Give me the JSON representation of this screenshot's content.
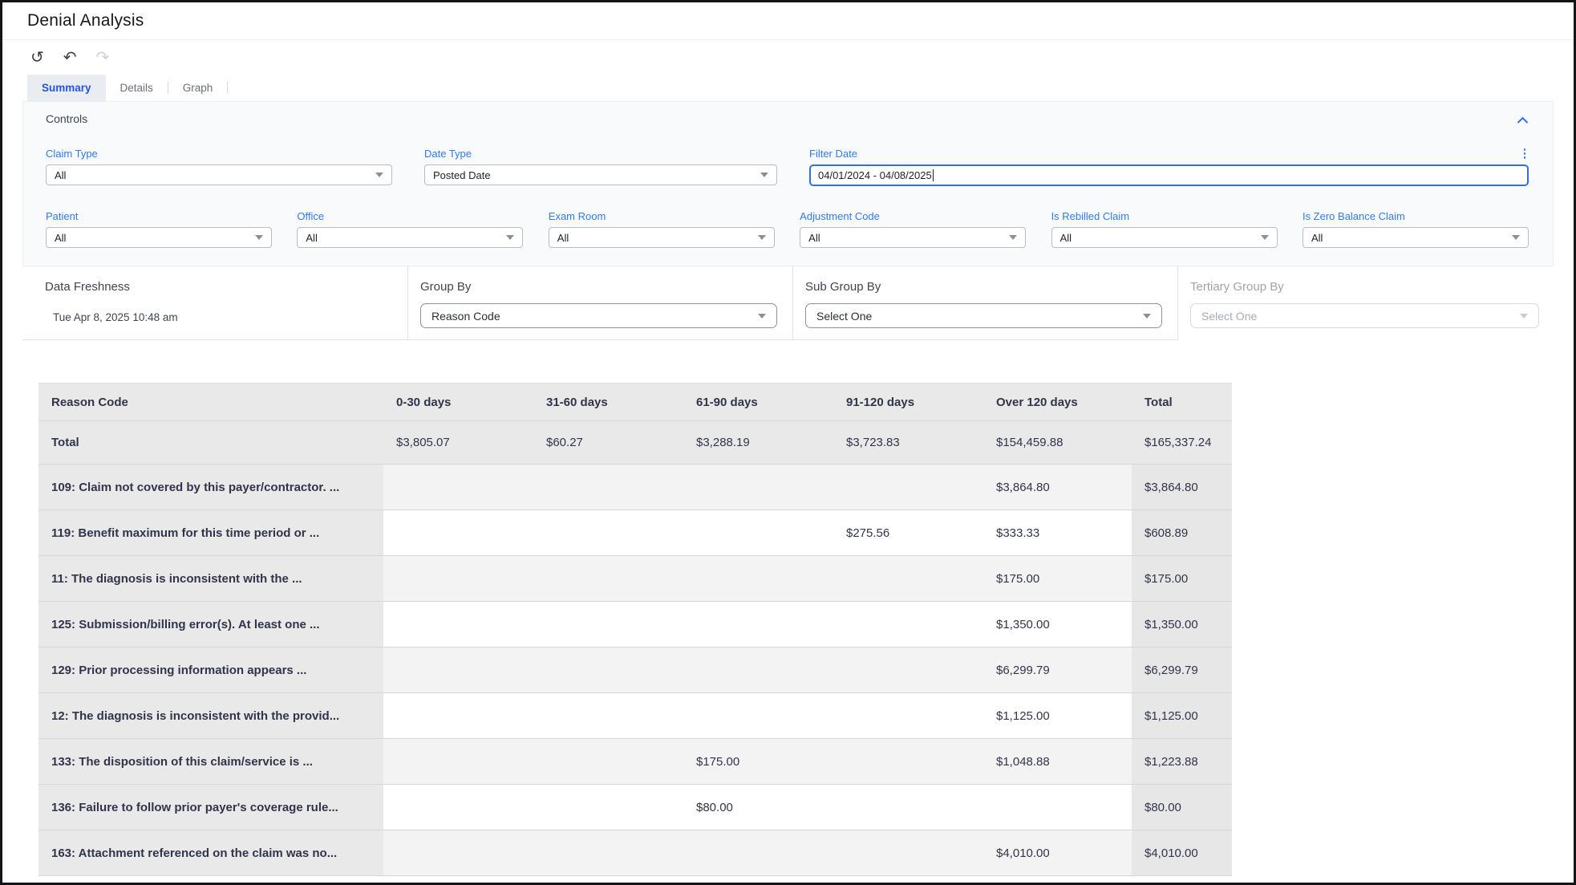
{
  "page": {
    "title": "Denial Analysis"
  },
  "colors": {
    "accent_blue": "#2e7bf5",
    "active_tab_blue": "#2356dd",
    "table_text": "#32344a",
    "table_header_bg": "#e9e9e9",
    "stripe_bg": "#f3f3f4"
  },
  "toolbar": {
    "icons": {
      "reset_glyph": "↺",
      "undo_glyph": "↶",
      "redo_glyph": "↷"
    }
  },
  "tabs": [
    {
      "label": "Summary",
      "active": true
    },
    {
      "label": "Details",
      "active": false
    },
    {
      "label": "Graph",
      "active": false
    }
  ],
  "controls": {
    "title": "Controls",
    "filters_row1": [
      {
        "label": "Claim Type",
        "value": "All"
      },
      {
        "label": "Date Type",
        "value": "Posted Date"
      },
      {
        "label": "Filter Date",
        "value": "04/01/2024 - 04/08/2025"
      }
    ],
    "filters_row2": [
      {
        "label": "Patient",
        "value": "All"
      },
      {
        "label": "Office",
        "value": "All"
      },
      {
        "label": "Exam Room",
        "value": "All"
      },
      {
        "label": "Adjustment Code",
        "value": "All"
      },
      {
        "label": "Is Rebilled Claim",
        "value": "All"
      },
      {
        "label": "Is Zero Balance Claim",
        "value": "All"
      }
    ]
  },
  "grouping": {
    "data_freshness": {
      "label": "Data Freshness",
      "value": "Tue Apr 8, 2025 10:48 am"
    },
    "group_by": {
      "label": "Group By",
      "value": "Reason Code"
    },
    "sub_group_by": {
      "label": "Sub Group By",
      "value": "Select One"
    },
    "tertiary_group_by": {
      "label": "Tertiary Group By",
      "value": "Select One",
      "disabled": true
    }
  },
  "table": {
    "columns": [
      "Reason Code",
      "0-30 days",
      "31-60 days",
      "61-90 days",
      "91-120 days",
      "Over 120 days",
      "Total"
    ],
    "total_row": {
      "label": "Total",
      "values": [
        "$3,805.07",
        "$60.27",
        "$3,288.19",
        "$3,723.83",
        "$154,459.88",
        "$165,337.24"
      ]
    },
    "rows": [
      {
        "label": "109: Claim not covered by this payer/contractor. ...",
        "values": [
          "",
          "",
          "",
          "",
          "$3,864.80",
          "$3,864.80"
        ]
      },
      {
        "label": "119: Benefit maximum for this time period or ...",
        "values": [
          "",
          "",
          "",
          "$275.56",
          "$333.33",
          "$608.89"
        ]
      },
      {
        "label": "11: The diagnosis is inconsistent with the ...",
        "values": [
          "",
          "",
          "",
          "",
          "$175.00",
          "$175.00"
        ]
      },
      {
        "label": "125: Submission/billing error(s). At least one ...",
        "values": [
          "",
          "",
          "",
          "",
          "$1,350.00",
          "$1,350.00"
        ]
      },
      {
        "label": "129: Prior processing information appears ...",
        "values": [
          "",
          "",
          "",
          "",
          "$6,299.79",
          "$6,299.79"
        ]
      },
      {
        "label": "12: The diagnosis is inconsistent with the provid...",
        "values": [
          "",
          "",
          "",
          "",
          "$1,125.00",
          "$1,125.00"
        ]
      },
      {
        "label": "133: The disposition of this claim/service is ...",
        "values": [
          "",
          "",
          "$175.00",
          "",
          "$1,048.88",
          "$1,223.88"
        ]
      },
      {
        "label": "136: Failure to follow prior payer's coverage rule...",
        "values": [
          "",
          "",
          "$80.00",
          "",
          "",
          "$80.00"
        ]
      },
      {
        "label": "163: Attachment referenced on the claim was no...",
        "values": [
          "",
          "",
          "",
          "",
          "$4,010.00",
          "$4,010.00"
        ]
      }
    ]
  }
}
